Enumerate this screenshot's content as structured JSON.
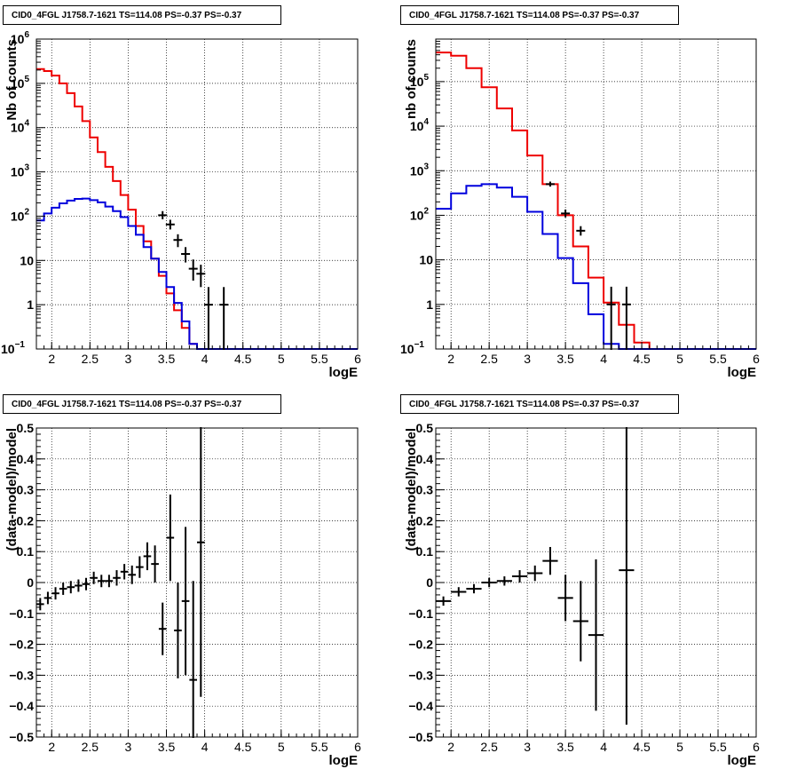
{
  "panels": [
    {
      "title": "CID0_4FGL J1758.7-1621 TS=114.08 PS=-0.37 PS=-0.37",
      "chart_data": {
        "type": "line",
        "log_y": true,
        "xlabel": "logE",
        "ylabel": "Nb of counts",
        "xlim": [
          1.8,
          6.0
        ],
        "ylim": [
          0.1,
          1000000
        ],
        "grid": true,
        "x_ticks": [
          "2",
          "2.5",
          "3",
          "3.5",
          "4",
          "4.5",
          "5",
          "5.5",
          "6"
        ],
        "y_ticks": [
          {
            "v": 0.1,
            "label": "10",
            "sup": "−1"
          },
          {
            "v": 1,
            "label": "1",
            "sup": ""
          },
          {
            "v": 10,
            "label": "10",
            "sup": ""
          },
          {
            "v": 100,
            "label": "10",
            "sup": "2"
          },
          {
            "v": 1000,
            "label": "10",
            "sup": "3"
          },
          {
            "v": 10000,
            "label": "10",
            "sup": "4"
          },
          {
            "v": 100000,
            "label": "10",
            "sup": "5"
          },
          {
            "v": 1000000,
            "label": "10",
            "sup": "6"
          }
        ],
        "bin_edges": [
          1.8,
          1.9,
          2.0,
          2.1,
          2.2,
          2.3,
          2.4,
          2.5,
          2.6,
          2.7,
          2.8,
          2.9,
          3.0,
          3.1,
          3.2,
          3.3,
          3.4,
          3.5,
          3.6,
          3.7,
          3.8,
          3.9,
          4.0,
          4.1,
          4.2,
          4.3,
          4.4,
          4.5,
          4.6,
          4.7,
          4.8,
          4.9,
          5.0,
          5.1,
          5.2,
          5.3,
          5.4,
          5.5,
          5.6,
          5.7,
          5.8,
          5.9,
          6.0
        ],
        "series": [
          {
            "color": "#ee0000",
            "values": [
              210000,
              190000,
              150000,
              100000,
              60000,
              30000,
              14000,
              6000,
              2800,
              1300,
              620,
              300,
              140,
              60,
              27,
              11,
              4.5,
              1.8,
              0.75,
              0.3,
              0.13,
              0.1,
              0.1,
              0.1,
              0.1,
              0.1,
              0.1,
              0.1,
              0.1,
              0.1,
              0.1,
              0.1,
              0.1,
              0.1,
              0.1,
              0.1,
              0.1,
              0.1,
              0.1,
              0.1,
              0.1,
              0.1
            ]
          },
          {
            "color": "#0000dd",
            "values": [
              80,
              115,
              155,
              195,
              225,
              245,
              250,
              230,
              205,
              165,
              130,
              95,
              60,
              38,
              20,
              11,
              5.5,
              2.5,
              1.1,
              0.42,
              0.13,
              0.1,
              0.1,
              0.1,
              0.1,
              0.1,
              0.1,
              0.1,
              0.1,
              0.1,
              0.1,
              0.1,
              0.1,
              0.1,
              0.1,
              0.1,
              0.1,
              0.1,
              0.1,
              0.1,
              0.1,
              0.1
            ]
          }
        ],
        "points": [
          {
            "x": 3.45,
            "y": 105,
            "yerr_lo": 20,
            "yerr_hi": 25
          },
          {
            "x": 3.55,
            "y": 65,
            "yerr_lo": 15,
            "yerr_hi": 18
          },
          {
            "x": 3.65,
            "y": 29,
            "yerr_lo": 9,
            "yerr_hi": 10
          },
          {
            "x": 3.75,
            "y": 14,
            "yerr_lo": 5,
            "yerr_hi": 6
          },
          {
            "x": 3.85,
            "y": 6.5,
            "yerr_lo": 3,
            "yerr_hi": 4
          },
          {
            "x": 3.95,
            "y": 5,
            "yerr_lo": 2.5,
            "yerr_hi": 3
          },
          {
            "x": 4.05,
            "y": 1,
            "yerr_lo": 1,
            "yerr_hi": 1.5
          },
          {
            "x": 4.25,
            "y": 1,
            "yerr_lo": 1,
            "yerr_hi": 1.5
          }
        ]
      }
    },
    {
      "title": "CID0_4FGL J1758.7-1621 TS=114.08 PS=-0.37 PS=-0.37",
      "chart_data": {
        "type": "line",
        "log_y": true,
        "xlabel": "logE",
        "ylabel": "nb of counts",
        "xlim": [
          1.8,
          6.0
        ],
        "ylim": [
          0.1,
          900000
        ],
        "grid": true,
        "x_ticks": [
          "2",
          "2.5",
          "3",
          "3.5",
          "4",
          "4.5",
          "5",
          "5.5",
          "6"
        ],
        "y_ticks": [
          {
            "v": 0.1,
            "label": "10",
            "sup": "−1"
          },
          {
            "v": 1,
            "label": "1",
            "sup": ""
          },
          {
            "v": 10,
            "label": "10",
            "sup": ""
          },
          {
            "v": 100,
            "label": "10",
            "sup": "2"
          },
          {
            "v": 1000,
            "label": "10",
            "sup": "3"
          },
          {
            "v": 10000,
            "label": "10",
            "sup": "4"
          },
          {
            "v": 100000,
            "label": "10",
            "sup": "5"
          }
        ],
        "bin_edges": [
          1.8,
          2.0,
          2.2,
          2.4,
          2.6,
          2.8,
          3.0,
          3.2,
          3.4,
          3.6,
          3.8,
          4.0,
          4.2,
          4.4,
          4.6,
          4.8,
          5.0,
          5.2,
          5.4,
          5.6,
          5.8,
          6.0
        ],
        "series": [
          {
            "color": "#ee0000",
            "values": [
              450000,
              380000,
              200000,
              75000,
              25000,
              8000,
              2200,
              500,
              100,
              20,
              4,
              1.1,
              0.35,
              0.14,
              0.1,
              0.1,
              0.1,
              0.1,
              0.1,
              0.1,
              0.1
            ]
          },
          {
            "color": "#0000dd",
            "values": [
              140,
              310,
              460,
              500,
              420,
              260,
              120,
              38,
              11,
              3,
              0.6,
              0.13,
              0.1,
              0.1,
              0.1,
              0.1,
              0.1,
              0.1,
              0.1,
              0.1,
              0.1
            ]
          }
        ],
        "points": [
          {
            "x": 3.3,
            "y": 500,
            "yerr_lo": 60,
            "yerr_hi": 70
          },
          {
            "x": 3.5,
            "y": 110,
            "yerr_lo": 20,
            "yerr_hi": 25
          },
          {
            "x": 3.7,
            "y": 45,
            "yerr_lo": 10,
            "yerr_hi": 12
          },
          {
            "x": 4.1,
            "y": 1,
            "yerr_lo": 1,
            "yerr_hi": 1.5
          },
          {
            "x": 4.3,
            "y": 1,
            "yerr_lo": 1,
            "yerr_hi": 1.5
          }
        ]
      }
    },
    {
      "title": "CID0_4FGL J1758.7-1621 TS=114.08 PS=-0.37 PS=-0.37",
      "chart_data": {
        "type": "scatter",
        "xlabel": "logE",
        "ylabel": "(data-model)/model",
        "xlim": [
          1.8,
          6.0
        ],
        "ylim": [
          -0.5,
          0.5
        ],
        "grid": true,
        "x_ticks": [
          "2",
          "2.5",
          "3",
          "3.5",
          "4",
          "4.5",
          "5",
          "5.5",
          "6"
        ],
        "y_ticks": [
          "−0.5",
          "−0.4",
          "−0.3",
          "−0.2",
          "−0.1",
          "0",
          "0.1",
          "0.2",
          "0.3",
          "0.4",
          "0.5"
        ],
        "xerr": 0.05,
        "points": [
          {
            "x": 1.85,
            "y": -0.07,
            "err": 0.02
          },
          {
            "x": 1.95,
            "y": -0.05,
            "err": 0.02
          },
          {
            "x": 2.05,
            "y": -0.035,
            "err": 0.02
          },
          {
            "x": 2.15,
            "y": -0.02,
            "err": 0.02
          },
          {
            "x": 2.25,
            "y": -0.015,
            "err": 0.02
          },
          {
            "x": 2.35,
            "y": -0.01,
            "err": 0.02
          },
          {
            "x": 2.45,
            "y": -0.005,
            "err": 0.02
          },
          {
            "x": 2.55,
            "y": 0.015,
            "err": 0.02
          },
          {
            "x": 2.65,
            "y": 0.005,
            "err": 0.02
          },
          {
            "x": 2.75,
            "y": 0.005,
            "err": 0.02
          },
          {
            "x": 2.85,
            "y": 0.015,
            "err": 0.025
          },
          {
            "x": 2.95,
            "y": 0.035,
            "err": 0.025
          },
          {
            "x": 3.05,
            "y": 0.025,
            "err": 0.03
          },
          {
            "x": 3.15,
            "y": 0.05,
            "err": 0.035
          },
          {
            "x": 3.25,
            "y": 0.085,
            "err": 0.045
          },
          {
            "x": 3.35,
            "y": 0.06,
            "err": 0.06
          },
          {
            "x": 3.45,
            "y": -0.15,
            "err": 0.085
          },
          {
            "x": 3.55,
            "y": 0.145,
            "err": 0.14
          },
          {
            "x": 3.65,
            "y": -0.155,
            "err": 0.155
          },
          {
            "x": 3.75,
            "y": -0.06,
            "err": 0.24
          },
          {
            "x": 3.85,
            "y": -0.315,
            "err": 0.32
          },
          {
            "x": 3.95,
            "y": 0.13,
            "err": 0.5
          }
        ]
      }
    },
    {
      "title": "CID0_4FGL J1758.7-1621 TS=114.08 PS=-0.37 PS=-0.37",
      "chart_data": {
        "type": "scatter",
        "xlabel": "logE",
        "ylabel": "(data-model)/model",
        "xlim": [
          1.8,
          6.0
        ],
        "ylim": [
          -0.5,
          0.5
        ],
        "grid": true,
        "x_ticks": [
          "2",
          "2.5",
          "3",
          "3.5",
          "4",
          "4.5",
          "5",
          "5.5",
          "6"
        ],
        "y_ticks": [
          "−0.5",
          "−0.4",
          "−0.3",
          "−0.2",
          "−0.1",
          "0",
          "0.1",
          "0.2",
          "0.3",
          "0.4",
          "0.5"
        ],
        "xerr": 0.1,
        "points": [
          {
            "x": 1.9,
            "y": -0.06,
            "err": 0.015
          },
          {
            "x": 2.1,
            "y": -0.03,
            "err": 0.015
          },
          {
            "x": 2.3,
            "y": -0.02,
            "err": 0.015
          },
          {
            "x": 2.5,
            "y": 0.0,
            "err": 0.015
          },
          {
            "x": 2.7,
            "y": 0.005,
            "err": 0.015
          },
          {
            "x": 2.9,
            "y": 0.02,
            "err": 0.02
          },
          {
            "x": 3.1,
            "y": 0.03,
            "err": 0.025
          },
          {
            "x": 3.3,
            "y": 0.07,
            "err": 0.045
          },
          {
            "x": 3.5,
            "y": -0.05,
            "err": 0.075
          },
          {
            "x": 3.7,
            "y": -0.125,
            "err": 0.13
          },
          {
            "x": 3.9,
            "y": -0.17,
            "err": 0.245
          },
          {
            "x": 4.3,
            "y": 0.04,
            "err": 0.5
          }
        ]
      }
    }
  ]
}
